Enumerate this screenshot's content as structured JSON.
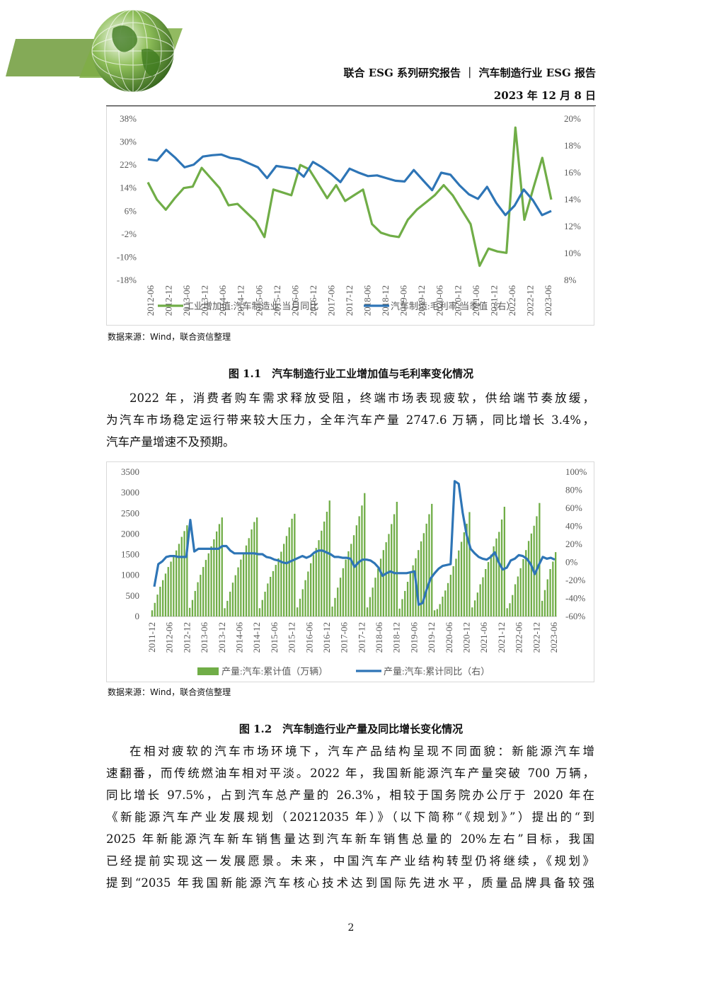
{
  "header": {
    "title": "联合 ESG 系列研究报告 ｜ 汽车制造行业 ESG 报告",
    "date": "2023  年  12  月  8  日"
  },
  "figure1": {
    "source": "数据来源：Wind，联合资信整理",
    "caption": "图 1.1　汽车制造行业工业增加值与毛利率变化情况"
  },
  "para1": {
    "lines": [
      "2022 年，消费者购车需求释放受阻，终端市场表现疲软，供给端节奏放缓，",
      "为汽车市场稳定运行带来较大压力，全年汽车产量 2747.6 万辆，同比增长 3.4%，",
      "汽车产量增速不及预期。"
    ]
  },
  "figure2": {
    "source": "数据来源：Wind，联合资信整理",
    "caption": "图 1.2　汽车制造行业产量及同比增长变化情况"
  },
  "para2": {
    "lines": [
      "在相对疲软的汽车市场环境下，汽车产品结构呈现不同面貌：新能源汽车增",
      "速翻番，而传统燃油车相对平淡。2022 年，我国新能源汽车产量突破 700 万辆，",
      "同比增长 97.5%，占到汽车总产量的 26.3%，相较于国务院办公厅于 2020 年在",
      "《新能源汽车产业发展规划（20212035 年）》（以下简称“《规划》”）提出的“到",
      "2025 年新能源汽车新车销售量达到汽车新车销售总量的 20%左右”目标，我国",
      "已经提前实现这一发展愿景。未来，中国汽车产业结构转型仍将继续，《规划》",
      "提到“2035 年我国新能源汽车核心技术达到国际先进水平，质量品牌具备较强"
    ]
  },
  "page_number": "2",
  "colors": {
    "green": "#70ad47",
    "blue": "#2e75b6",
    "logo_green": "#5a8a2e"
  },
  "chart_data": [
    {
      "type": "line",
      "x_labels": [
        "2012-06",
        "2012-12",
        "2013-06",
        "2013-12",
        "2014-06",
        "2014-12",
        "2015-06",
        "2015-12",
        "2016-06",
        "2016-12",
        "2017-06",
        "2017-12",
        "2018-06",
        "2018-12",
        "2019-06",
        "2019-12",
        "2020-06",
        "2020-12",
        "2021-06",
        "2021-12",
        "2022-06",
        "2022-12",
        "2023-06"
      ],
      "y_left": {
        "ticks": [
          "38%",
          "30%",
          "22%",
          "14%",
          "6%",
          "-2%",
          "-10%",
          "-18%"
        ],
        "lim": [
          -18,
          38
        ]
      },
      "y_right": {
        "ticks": [
          "20%",
          "18%",
          "16%",
          "14%",
          "12%",
          "10%",
          "8%"
        ],
        "lim": [
          8,
          20
        ]
      },
      "series": [
        {
          "name": "工业增加值:汽车制造业:当月同比",
          "axis": "left",
          "values": [
            16,
            10,
            6.5,
            10.5,
            14,
            14.5,
            21,
            17.5,
            14,
            8,
            8.5,
            5.5,
            2.5,
            -3,
            13.5,
            12.5,
            11.5,
            22,
            20.5,
            15.5,
            10.5,
            15,
            9.5,
            11.5,
            13.5,
            1.5,
            -1.5,
            -2.5,
            -3,
            3,
            6.5,
            9,
            11.5,
            15,
            11.5,
            6.5,
            1.5,
            -13,
            -7,
            -8,
            -8.5,
            35,
            3,
            14,
            24.5,
            10
          ]
        },
        {
          "name": "汽车制造:毛利率:当季值（右）",
          "axis": "right",
          "values": [
            17,
            16.9,
            17.7,
            17.1,
            16.4,
            16.6,
            17.2,
            17.3,
            17.35,
            17.1,
            17.0,
            16.7,
            16.4,
            15.6,
            16.5,
            16.4,
            16.3,
            15.7,
            16.8,
            16.4,
            15.9,
            15.3,
            16.3,
            16.0,
            15.75,
            15.8,
            15.6,
            15.4,
            15.35,
            16.2,
            15.45,
            14.7,
            16.0,
            15.85,
            15.05,
            14.4,
            14.05,
            14.95,
            13.75,
            12.85,
            13.55,
            14.75,
            13.95,
            12.85,
            13.15
          ]
        }
      ]
    },
    {
      "type": "bar",
      "x_labels": [
        "2011-12",
        "2012-06",
        "2012-12",
        "2013-06",
        "2013-12",
        "2014-06",
        "2014-12",
        "2015-06",
        "2015-12",
        "2016-06",
        "2016-12",
        "2017-06",
        "2017-12",
        "2018-06",
        "2018-12",
        "2019-06",
        "2019-12",
        "2020-06",
        "2020-12",
        "2021-06",
        "2021-12",
        "2022-06",
        "2022-12",
        "2023-06"
      ],
      "y_left": {
        "ticks": [
          "3500",
          "3000",
          "2500",
          "2000",
          "1500",
          "1000",
          "500",
          "0"
        ],
        "lim": [
          0,
          3500
        ]
      },
      "y_right": {
        "ticks": [
          "100%",
          "80%",
          "60%",
          "40%",
          "20%",
          "0%",
          "-20%",
          "-40%",
          "-60%"
        ],
        "lim": [
          -60,
          100
        ]
      },
      "series": [
        {
          "name": "产量:汽车:累计值（万辆）",
          "axis": "left",
          "kind": "bar",
          "values": [
            150,
            330,
            530,
            720,
            880,
            1040,
            1200,
            1330,
            1460,
            1600,
            1760,
            1930,
            2070,
            2210,
            210,
            400,
            620,
            830,
            1010,
            1200,
            1370,
            1530,
            1700,
            1870,
            2060,
            2240,
            2400,
            200,
            380,
            600,
            820,
            1000,
            1190,
            1380,
            1550,
            1720,
            1900,
            2110,
            2290,
            2400,
            200,
            400,
            600,
            800,
            960,
            1100,
            1250,
            1410,
            1570,
            1760,
            1950,
            2160,
            2370,
            2490,
            220,
            430,
            660,
            880,
            1090,
            1290,
            1490,
            1660,
            1850,
            2080,
            2300,
            2540,
            2810,
            240,
            450,
            700,
            940,
            1170,
            1380,
            1580,
            1760,
            1970,
            2210,
            2430,
            2690,
            2990,
            220,
            470,
            700,
            940,
            1160,
            1400,
            1610,
            1800,
            2000,
            2240,
            2480,
            2780,
            190,
            420,
            620,
            840,
            1050,
            1240,
            1410,
            1610,
            1820,
            2020,
            2250,
            2480,
            2730,
            150,
            180,
            300,
            480,
            630,
            810,
            1010,
            1220,
            1400,
            1600,
            1810,
            2040,
            2250,
            2530,
            220,
            390,
            580,
            780,
            950,
            1150,
            1320,
            1500,
            1700,
            1890,
            2050,
            2350,
            2660,
            200,
            320,
            520,
            780,
            970,
            1170,
            1390,
            1610,
            1830,
            2010,
            2200,
            2430,
            2750,
            380,
            640,
            900,
            1150,
            1330,
            1560
          ]
        },
        {
          "name": "产量:汽车:累计同比（右）",
          "axis": "right",
          "kind": "line",
          "values": [
            -27,
            -2,
            1,
            6,
            7,
            7,
            6,
            6,
            6,
            47,
            12,
            15,
            15,
            15,
            15,
            15,
            15,
            18,
            18,
            13,
            10,
            10,
            10,
            10,
            10,
            10,
            9,
            9,
            6,
            5,
            3,
            2,
            0,
            -1,
            1,
            3,
            5,
            7,
            5,
            7,
            11,
            13,
            13,
            11,
            9,
            6,
            6,
            5,
            5,
            4,
            -5,
            0,
            3,
            3,
            2,
            -1,
            -6,
            -15,
            -12,
            -10,
            -12,
            -12,
            -12,
            -12,
            -11,
            -10,
            -47,
            -45,
            -30,
            -18,
            -12,
            -7,
            -4,
            -3,
            -2,
            90,
            87,
            55,
            30,
            15,
            10,
            6,
            4,
            3,
            6,
            11,
            0,
            -8,
            -6,
            2,
            4,
            8,
            7,
            4,
            -2,
            -13,
            -3,
            6,
            4,
            5,
            3
          ]
        }
      ]
    }
  ]
}
